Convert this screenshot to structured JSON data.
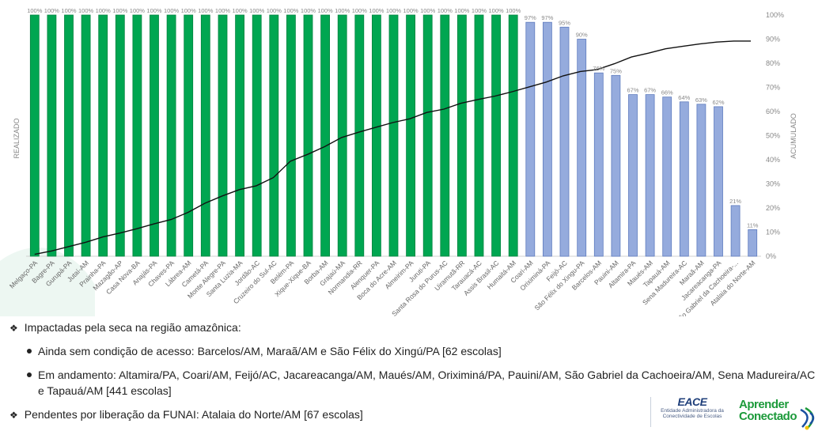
{
  "chart_data": {
    "type": "bar",
    "ylabel": "REALIZADO",
    "y2label": "ACUMULADO",
    "ylim": [
      0,
      100
    ],
    "y_ticks": [
      "0%",
      "10%",
      "20%",
      "30%",
      "40%",
      "50%",
      "60%",
      "70%",
      "80%",
      "90%",
      "100%"
    ],
    "categories": [
      "Melgaço-PA",
      "Bagre-PA",
      "Gurupá-PA",
      "Jutaí-AM",
      "Prainha-PA",
      "Mazagão-AP",
      "Casa Nova-BA",
      "Anajás-PA",
      "Chaves-PA",
      "Lábrea-AM",
      "Cametá-PA",
      "Monte Alegre-PA",
      "Santa Luzia-MA",
      "Jordão-AC",
      "Cruzeiro do Sul-AC",
      "Belém-PA",
      "Xique-Xique-BA",
      "Borba-AM",
      "Grajaú-MA",
      "Normandia-RR",
      "Alenquer-PA",
      "Boca do Acre-AM",
      "Almeirim-PA",
      "Juruti-PA",
      "Santa Rosa do Purus-AC",
      "Uiramutã-RR",
      "Tarauacá-AC",
      "Assis Brasil-AC",
      "Humaitá-AM",
      "Coari-AM",
      "Oriximiná-PA",
      "Feijó-AC",
      "São Félix do Xingu-PA",
      "Barcelos-AM",
      "Pauini-AM",
      "Altamira-PA",
      "Maués-AM",
      "Tapauá-AM",
      "Sena Madureira-AC",
      "Maraã-AM",
      "Jacareacanga-PA",
      "São Gabriel da Cachoeira-...",
      "Atalaia do Norte-AM"
    ],
    "values": [
      100,
      100,
      100,
      100,
      100,
      100,
      100,
      100,
      100,
      100,
      100,
      100,
      100,
      100,
      100,
      100,
      100,
      100,
      100,
      100,
      100,
      100,
      100,
      100,
      100,
      100,
      100,
      100,
      100,
      97,
      97,
      95,
      90,
      76,
      75,
      67,
      67,
      66,
      64,
      63,
      62,
      21,
      11
    ],
    "labels": [
      "100%",
      "100%",
      "100%",
      "100%",
      "100%",
      "100%",
      "100%",
      "100%",
      "100%",
      "100%",
      "100%",
      "100%",
      "100%",
      "100%",
      "100%",
      "100%",
      "100%",
      "100%",
      "100%",
      "100%",
      "100%",
      "100%",
      "100%",
      "100%",
      "100%",
      "100%",
      "100%",
      "100%",
      "100%",
      "97%",
      "97%",
      "95%",
      "90%",
      "76%",
      "75%",
      "67%",
      "67%",
      "66%",
      "64%",
      "63%",
      "62%",
      "21%",
      "11%"
    ],
    "cumulative": [
      0.8,
      2.2,
      4,
      5.8,
      8,
      9.6,
      11.4,
      13.4,
      15.2,
      18.2,
      22,
      25,
      27.6,
      29.2,
      32.6,
      39.4,
      42.2,
      45.4,
      49.2,
      51.4,
      53.4,
      55.4,
      57,
      59.6,
      61,
      63.4,
      65,
      66.4,
      68.2,
      70.2,
      72.2,
      74.8,
      76.6,
      77.4,
      79.8,
      82.6,
      84.2,
      86,
      87,
      88,
      88.8,
      89.2,
      89.2
    ],
    "colors": {
      "complete": "#00a651",
      "complete_edge": "#00843f",
      "partial": "#95abdd",
      "partial_edge": "#5f7cbf",
      "line": "#111111",
      "axis_text": "#888888"
    }
  },
  "bullets": {
    "b1": "Impactadas pela seca na região amazônica:",
    "b2": "Ainda sem condição de acesso: Barcelos/AM, Maraã/AM e São Félix do Xingú/PA [62 escolas]",
    "b3": "Em andamento: Altamira/PA, Coari/AM, Feijó/AC, Jacareacanga/AM, Maués/AM, Oriximiná/PA, Pauini/AM, São Gabriel da Cachoeira/AM, Sena Madureira/AC e Tapauá/AM [441 escolas]",
    "b4": "Pendentes por liberação da FUNAI:  Atalaia do Norte/AM [67 escolas]",
    "diamond": "❖",
    "bullet": "•"
  },
  "logos": {
    "eace_mark": "EACE",
    "eace_sub1": "Entidade Administradora da",
    "eace_sub2": "Conectividade de Escolas",
    "ap_l1": "Aprender",
    "ap_l2": "Conectado"
  }
}
